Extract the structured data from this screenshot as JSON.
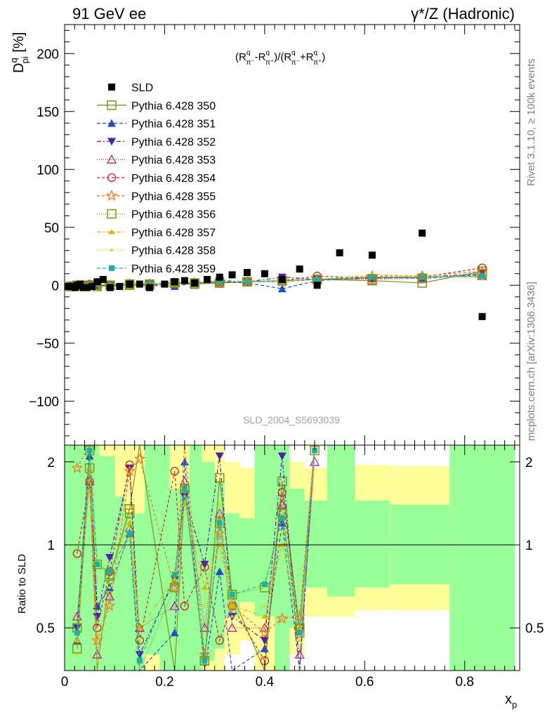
{
  "header": {
    "left": "91 GeV ee",
    "right": "γ*/Z (Hadronic)"
  },
  "side_labels": {
    "rivet": "Rivet 3.1.10, ≥ 100k events",
    "mcplots": "mcplots.cern.ch [arXiv:1306.3436]"
  },
  "analysis_label": "SLD_2004_S5693039",
  "chart_data": [
    {
      "type": "scatter",
      "panel": "main",
      "ylabel": "D^q_pi [%]",
      "formula": "(R^q_π⁻ - R^q_π⁺)/(R^q_π⁻ + R^q_π⁺)",
      "xlim": [
        0,
        0.91
      ],
      "ylim": [
        -138,
        225
      ],
      "yticks": [
        -100,
        -50,
        0,
        50,
        100,
        150,
        200
      ],
      "legend_position": "upper-left",
      "series": [
        {
          "name": "SLD",
          "color": "#000000",
          "marker": "square-filled",
          "x": [
            0.007,
            0.012,
            0.016,
            0.021,
            0.025,
            0.031,
            0.037,
            0.045,
            0.055,
            0.065,
            0.077,
            0.091,
            0.11,
            0.13,
            0.15,
            0.17,
            0.2,
            0.22,
            0.24,
            0.26,
            0.285,
            0.31,
            0.335,
            0.365,
            0.4,
            0.435,
            0.47,
            0.505,
            0.55,
            0.615,
            0.715,
            0.835
          ],
          "y": [
            -1,
            -1,
            -1,
            -2,
            0,
            1,
            -2,
            -2,
            -1,
            3,
            5,
            -2,
            -1,
            1,
            1,
            -2,
            1,
            3,
            4,
            2,
            5,
            7,
            9,
            11,
            10,
            5,
            14,
            0,
            28,
            26,
            45,
            -27
          ]
        },
        {
          "name": "Pythia 6.428 350",
          "color": "#8c8c20",
          "marker": "square-open",
          "dash": "",
          "x": [
            0.012,
            0.025,
            0.037,
            0.05,
            0.065,
            0.091,
            0.13,
            0.17,
            0.22,
            0.26,
            0.31,
            0.365,
            0.435,
            0.505,
            0.615,
            0.715,
            0.835
          ],
          "y": [
            -1,
            0,
            0,
            0,
            -1,
            0,
            0,
            0,
            2,
            1,
            2,
            3,
            4,
            5,
            4,
            2,
            12
          ]
        },
        {
          "name": "Pythia 6.428 351",
          "color": "#1f52c0",
          "marker": "triangle-up-filled",
          "dash": "5,3",
          "x": [
            0.012,
            0.025,
            0.037,
            0.05,
            0.065,
            0.091,
            0.13,
            0.17,
            0.22,
            0.26,
            0.31,
            0.365,
            0.435,
            0.505,
            0.615,
            0.715,
            0.835
          ],
          "y": [
            -1,
            0,
            1,
            1,
            0,
            -1,
            1,
            0,
            -1,
            2,
            3,
            2,
            -3,
            4,
            7,
            6,
            9
          ]
        },
        {
          "name": "Pythia 6.428 352",
          "color": "#4a20b0",
          "marker": "triangle-down-filled",
          "dash": "6,3,2,3",
          "x": [
            0.012,
            0.025,
            0.037,
            0.05,
            0.065,
            0.091,
            0.13,
            0.17,
            0.22,
            0.26,
            0.31,
            0.365,
            0.435,
            0.505,
            0.615,
            0.715,
            0.835
          ],
          "y": [
            -1,
            0,
            0,
            1,
            0,
            0,
            1,
            1,
            2,
            2,
            4,
            3,
            7,
            5,
            6,
            7,
            10
          ]
        },
        {
          "name": "Pythia 6.428 353",
          "color": "#c0208a",
          "marker": "triangle-up-open",
          "dash": "1,2",
          "x": [
            0.012,
            0.025,
            0.037,
            0.05,
            0.065,
            0.091,
            0.13,
            0.17,
            0.22,
            0.26,
            0.31,
            0.365,
            0.435,
            0.505,
            0.615,
            0.715,
            0.835
          ],
          "y": [
            -1,
            0,
            0,
            0,
            1,
            0,
            1,
            1,
            2,
            2,
            3,
            3,
            4,
            5,
            6,
            7,
            8
          ]
        },
        {
          "name": "Pythia 6.428 354",
          "color": "#d02020",
          "marker": "circle-open",
          "dash": "4,3",
          "x": [
            0.012,
            0.025,
            0.037,
            0.05,
            0.065,
            0.091,
            0.13,
            0.17,
            0.22,
            0.26,
            0.31,
            0.365,
            0.435,
            0.505,
            0.615,
            0.715,
            0.835
          ],
          "y": [
            -1,
            0,
            0,
            1,
            1,
            0,
            1,
            1,
            1,
            2,
            2,
            3,
            4,
            8,
            6,
            7,
            15
          ]
        },
        {
          "name": "Pythia 6.428 355",
          "color": "#f07820",
          "marker": "star-open",
          "dash": "4,3",
          "x": [
            0.012,
            0.025,
            0.037,
            0.05,
            0.065,
            0.091,
            0.13,
            0.17,
            0.22,
            0.26,
            0.31,
            0.365,
            0.435,
            0.505,
            0.615,
            0.715,
            0.835
          ],
          "y": [
            -1,
            0,
            0,
            0,
            1,
            0,
            1,
            1,
            2,
            2,
            3,
            3,
            3,
            5,
            8,
            8,
            12
          ]
        },
        {
          "name": "Pythia 6.428 356",
          "color": "#7a9a10",
          "marker": "square-open",
          "dash": "1,2",
          "x": [
            0.012,
            0.025,
            0.037,
            0.05,
            0.065,
            0.091,
            0.13,
            0.17,
            0.22,
            0.26,
            0.31,
            0.365,
            0.435,
            0.505,
            0.615,
            0.715,
            0.835
          ],
          "y": [
            -1,
            0,
            0,
            0,
            0,
            0,
            1,
            1,
            2,
            2,
            2,
            3,
            4,
            5,
            5,
            6,
            10
          ]
        },
        {
          "name": "Pythia 6.428 357",
          "color": "#d8b800",
          "marker": "tri-filled",
          "dash": "6,3,2,3",
          "x": [
            0.012,
            0.025,
            0.037,
            0.05,
            0.065,
            0.091,
            0.13,
            0.17,
            0.22,
            0.26,
            0.31,
            0.365,
            0.435,
            0.505,
            0.615,
            0.715,
            0.835
          ],
          "y": [
            -1,
            0,
            0,
            0,
            1,
            0,
            1,
            1,
            1,
            2,
            3,
            3,
            3,
            5,
            9,
            8,
            7
          ]
        },
        {
          "name": "Pythia 6.428 358",
          "color": "#c8e020",
          "marker": "dot",
          "dash": "1,2",
          "x": [
            0.012,
            0.025,
            0.037,
            0.05,
            0.065,
            0.091,
            0.13,
            0.17,
            0.22,
            0.26,
            0.31,
            0.365,
            0.435,
            0.505,
            0.615,
            0.715,
            0.835
          ],
          "y": [
            -1,
            0,
            0,
            1,
            1,
            0,
            1,
            1,
            2,
            2,
            3,
            3,
            4,
            5,
            7,
            8,
            6
          ]
        },
        {
          "name": "Pythia 6.428 359",
          "color": "#20b0a0",
          "marker": "square-filled-small",
          "dash": "5,3",
          "x": [
            0.012,
            0.025,
            0.037,
            0.05,
            0.065,
            0.091,
            0.13,
            0.17,
            0.22,
            0.26,
            0.31,
            0.365,
            0.435,
            0.505,
            0.615,
            0.715,
            0.835
          ],
          "y": [
            -1,
            0,
            0,
            0,
            1,
            0,
            1,
            1,
            2,
            2,
            3,
            3,
            4,
            5,
            7,
            7,
            8
          ]
        }
      ]
    },
    {
      "type": "line",
      "panel": "ratio",
      "xlabel": "x_p",
      "ylabel": "Ratio to SLD",
      "xlim": [
        0,
        0.91
      ],
      "ylim": [
        0.35,
        2.3
      ],
      "xticks": [
        0,
        0.2,
        0.4,
        0.6,
        0.8
      ],
      "yticks": [
        0.5,
        1,
        2
      ],
      "reference_line": 1,
      "band_colors": {
        "stat": "#99ff99",
        "total": "#ffff99"
      },
      "bands": [
        {
          "x0": 0.0,
          "x1": 0.07,
          "stat": [
            0.35,
            2.3
          ],
          "total": [
            0.35,
            2.3
          ]
        },
        {
          "x0": 0.07,
          "x1": 0.1,
          "stat": [
            0.35,
            2.1
          ],
          "total": [
            0.35,
            2.3
          ]
        },
        {
          "x0": 0.1,
          "x1": 0.12,
          "stat": [
            0.35,
            1.5
          ],
          "total": [
            0.35,
            2.3
          ]
        },
        {
          "x0": 0.12,
          "x1": 0.16,
          "stat": [
            0.35,
            1.3
          ],
          "total": [
            0.35,
            2.3
          ]
        },
        {
          "x0": 0.16,
          "x1": 0.19,
          "stat": [
            0.4,
            2.3
          ],
          "total": [
            0.35,
            2.3
          ]
        },
        {
          "x0": 0.19,
          "x1": 0.21,
          "stat": [
            0.35,
            2.3
          ],
          "total": [
            0.35,
            2.3
          ]
        },
        {
          "x0": 0.21,
          "x1": 0.25,
          "stat": [
            0.35,
            1.6
          ],
          "total": [
            0.35,
            2.3
          ]
        },
        {
          "x0": 0.25,
          "x1": 0.275,
          "stat": [
            0.35,
            2.3
          ],
          "total": [
            0.35,
            2.3
          ]
        },
        {
          "x0": 0.275,
          "x1": 0.3,
          "stat": [
            0.38,
            2.0
          ],
          "total": [
            0.35,
            2.3
          ]
        },
        {
          "x0": 0.3,
          "x1": 0.32,
          "stat": [
            0.42,
            1.7
          ],
          "total": [
            0.35,
            2.3
          ]
        },
        {
          "x0": 0.32,
          "x1": 0.35,
          "stat": [
            0.55,
            1.3
          ],
          "total": [
            0.4,
            2.0
          ]
        },
        {
          "x0": 0.35,
          "x1": 0.38,
          "stat": [
            0.62,
            1.25
          ],
          "total": [
            0.45,
            1.9
          ]
        },
        {
          "x0": 0.38,
          "x1": 0.42,
          "stat": [
            0.55,
            2.3
          ],
          "total": [
            0.35,
            2.3
          ]
        },
        {
          "x0": 0.42,
          "x1": 0.45,
          "stat": [
            0.35,
            2.3
          ],
          "total": [
            0.35,
            2.3
          ]
        },
        {
          "x0": 0.45,
          "x1": 0.48,
          "stat": [
            0.5,
            1.6
          ],
          "total": [
            0.4,
            2.0
          ]
        },
        {
          "x0": 0.48,
          "x1": 0.525,
          "stat": [
            0.7,
            1.45
          ],
          "total": [
            0.55,
            1.9
          ]
        },
        {
          "x0": 0.525,
          "x1": 0.58,
          "stat": [
            0.65,
            2.3
          ],
          "total": [
            0.55,
            2.3
          ]
        },
        {
          "x0": 0.58,
          "x1": 0.65,
          "stat": [
            0.7,
            1.45
          ],
          "total": [
            0.58,
            1.95
          ]
        },
        {
          "x0": 0.65,
          "x1": 0.77,
          "stat": [
            0.72,
            1.4
          ],
          "total": [
            0.58,
            1.93
          ]
        },
        {
          "x0": 0.77,
          "x1": 0.9,
          "stat": [
            0.35,
            2.3
          ],
          "total": [
            0.35,
            2.3
          ]
        }
      ],
      "series": [
        {
          "name": "Pythia 6.428 350",
          "values": [
            0.42,
            1.9,
            0.35,
            0.77,
            1.35,
            2.3,
            0.35,
            1.6,
            0.38,
            1.75,
            0.66,
            0.35,
            1.7,
            0.48,
            2.3
          ]
        },
        {
          "name": "Pythia 6.428 351",
          "values": [
            0.45,
            2.1,
            0.6,
            0.7,
            1.1,
            0.35,
            0.48,
            2.0,
            0.35,
            0.8,
            0.35,
            0.42,
            1.2,
            0.35,
            2.3
          ]
        },
        {
          "name": "Pythia 6.428 352",
          "values": [
            0.5,
            2.3,
            0.55,
            0.9,
            1.9,
            0.4,
            0.75,
            1.5,
            0.85,
            2.1,
            0.55,
            0.45,
            2.1,
            0.35,
            2.3
          ]
        },
        {
          "name": "Pythia 6.428 353",
          "values": [
            0.55,
            1.7,
            0.4,
            0.65,
            1.15,
            0.5,
            0.6,
            1.7,
            0.5,
            1.3,
            0.5,
            0.5,
            1.4,
            0.4,
            2.0
          ]
        },
        {
          "name": "Pythia 6.428 354",
          "values": [
            0.93,
            1.7,
            0.5,
            0.8,
            1.95,
            0.45,
            1.85,
            0.6,
            0.83,
            0.45,
            0.6,
            0.38,
            1.55,
            0.5,
            2.3
          ]
        },
        {
          "name": "Pythia 6.428 355",
          "values": [
            1.9,
            2.3,
            0.45,
            0.6,
            1.85,
            2.05,
            0.7,
            2.3,
            0.4,
            1.1,
            0.6,
            0.48,
            0.54,
            0.55,
            2.3
          ]
        },
        {
          "name": "Pythia 6.428 356",
          "values": [
            0.5,
            2.2,
            0.85,
            0.78,
            1.3,
            0.35,
            0.7,
            1.6,
            0.38,
            1.2,
            0.66,
            0.7,
            1.3,
            0.5,
            2.2
          ]
        },
        {
          "name": "Pythia 6.428 357",
          "values": [
            0.45,
            1.9,
            0.35,
            0.8,
            1.2,
            0.5,
            0.75,
            1.4,
            0.7,
            1.0,
            0.6,
            0.55,
            1.0,
            0.5,
            2.3
          ]
        },
        {
          "name": "Pythia 6.428 358",
          "values": [
            0.4,
            2.0,
            0.75,
            0.7,
            1.1,
            0.45,
            0.8,
            1.5,
            0.6,
            1.4,
            0.55,
            0.6,
            1.1,
            0.45,
            2.2
          ]
        },
        {
          "name": "Pythia 6.428 359",
          "values": [
            0.48,
            2.2,
            0.85,
            0.8,
            1.1,
            0.38,
            0.78,
            1.6,
            0.38,
            1.2,
            0.66,
            0.72,
            1.25,
            0.48,
            2.2
          ]
        }
      ],
      "series_x": [
        0.025,
        0.05,
        0.065,
        0.09,
        0.13,
        0.15,
        0.22,
        0.24,
        0.28,
        0.31,
        0.335,
        0.4,
        0.435,
        0.47,
        0.5
      ]
    }
  ]
}
